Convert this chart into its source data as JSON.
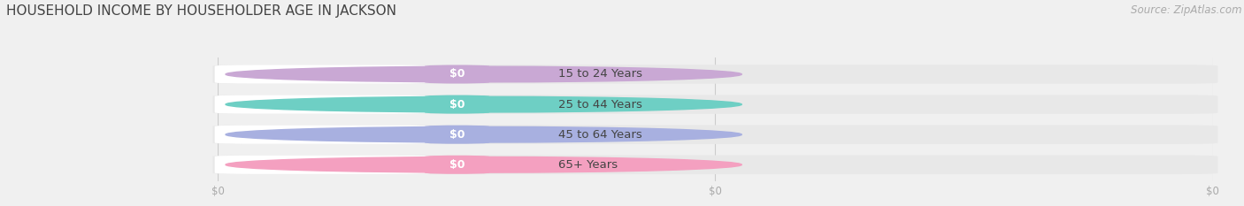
{
  "title": "HOUSEHOLD INCOME BY HOUSEHOLDER AGE IN JACKSON",
  "source": "Source: ZipAtlas.com",
  "categories": [
    "15 to 24 Years",
    "25 to 44 Years",
    "45 to 64 Years",
    "65+ Years"
  ],
  "values": [
    0,
    0,
    0,
    0
  ],
  "bar_colors": [
    "#c9a8d4",
    "#6ecfc4",
    "#a8b0e0",
    "#f4a0c0"
  ],
  "background_color": "#f0f0f0",
  "bar_bg_color": "#e8e8e8",
  "pill_bg_color": "#ffffff",
  "title_color": "#444444",
  "label_color": "#444444",
  "tick_color": "#aaaaaa",
  "source_color": "#aaaaaa",
  "title_fontsize": 11,
  "label_fontsize": 9.5,
  "tick_fontsize": 8.5,
  "source_fontsize": 8.5
}
